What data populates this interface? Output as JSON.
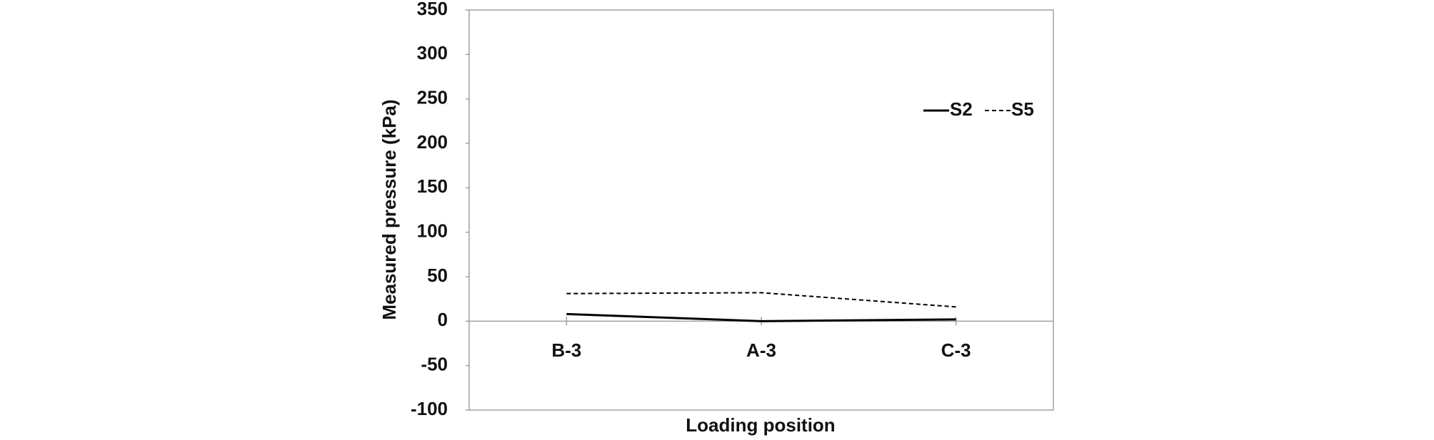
{
  "chart_data": {
    "type": "line",
    "x_label": "Loading position",
    "y_label": "Measured pressure (kPa)",
    "categories": [
      "B-3",
      "A-3",
      "C-3"
    ],
    "series": [
      {
        "name": "S2",
        "color": "#000000",
        "dash": "solid",
        "values": [
          8,
          0,
          2
        ]
      },
      {
        "name": "S5",
        "color": "#000000",
        "dash": "dashed",
        "values": [
          31,
          32,
          16
        ]
      }
    ],
    "ylim": [
      -100,
      350
    ],
    "yticks": [
      -100,
      -50,
      0,
      50,
      100,
      150,
      200,
      250,
      300,
      350
    ],
    "grid": false,
    "legend": "upper right"
  }
}
